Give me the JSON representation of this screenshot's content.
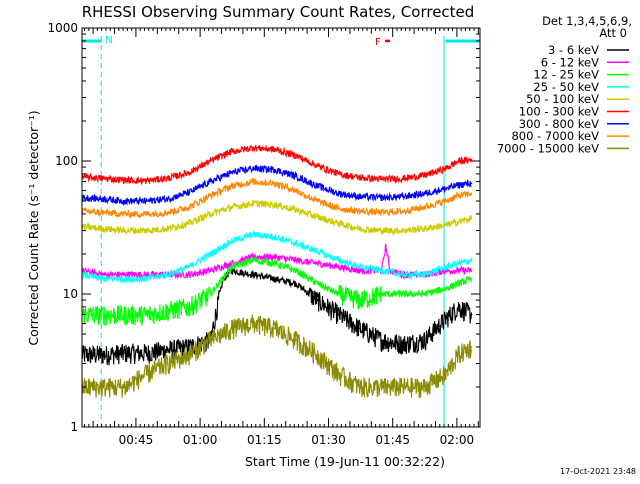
{
  "chart_data": {
    "type": "line",
    "title": "RHESSI Observing Summary Count Rates, Corrected",
    "xlabel": "Start Time (19-Jun-11 00:32:22)",
    "ylabel": "Corrected Count Rate (s⁻¹ detector⁻¹)",
    "footer": "17-Oct-2021 23:48",
    "y_scale": "log",
    "ylim": [
      1,
      1000
    ],
    "x_unit": "minutes after 00:32:22",
    "xlim": [
      0,
      93
    ],
    "x_tick_labels": [
      {
        "label": "00:45",
        "x": 12.6
      },
      {
        "label": "01:00",
        "x": 27.6
      },
      {
        "label": "01:15",
        "x": 42.6
      },
      {
        "label": "01:30",
        "x": 57.6
      },
      {
        "label": "01:45",
        "x": 72.6
      },
      {
        "label": "02:00",
        "x": 87.6
      }
    ],
    "y_tick_labels": [
      {
        "label": "1",
        "y": 1
      },
      {
        "label": "10",
        "y": 10
      },
      {
        "label": "100",
        "y": 100
      },
      {
        "label": "1000",
        "y": 1000
      }
    ],
    "legend": {
      "placement": "right",
      "header": [
        "Det 1,3,4,5,6,9,",
        "Att 0"
      ]
    },
    "annotations": {
      "night_label": "N",
      "flare_label": "F",
      "night_intervals": [
        [
          -5,
          4.5
        ],
        [
          85,
          95
        ]
      ],
      "saa_lines": [
        0,
        4.5,
        84.6,
        94
      ],
      "flare_interval": [
        70.8,
        72.0
      ],
      "flare_y": 800
    },
    "series": [
      {
        "name": "3 - 6 keV",
        "color": "#000000",
        "x": [
          0,
          5,
          10,
          15,
          20,
          25,
          30,
          33,
          35,
          40,
          45,
          50,
          55,
          60,
          65,
          70,
          75,
          80,
          85,
          88,
          91
        ],
        "values": [
          3.5,
          3.5,
          3.6,
          3.6,
          3.8,
          4.0,
          4.5,
          13,
          15,
          14,
          13,
          12,
          9,
          7,
          5.5,
          4.5,
          4.2,
          4.5,
          6.5,
          8,
          7
        ]
      },
      {
        "name": "6 - 12 keV",
        "color": "#ff00ff",
        "x": [
          0,
          5,
          10,
          15,
          20,
          25,
          30,
          35,
          40,
          45,
          50,
          55,
          60,
          65,
          70,
          71,
          72,
          75,
          80,
          85,
          88,
          91
        ],
        "values": [
          15,
          14,
          14,
          14,
          14,
          14,
          15,
          17,
          19,
          19,
          18,
          17,
          16,
          15,
          15,
          23,
          15,
          14,
          14,
          15,
          15,
          15
        ]
      },
      {
        "name": "12 - 25 keV",
        "color": "#00ff00",
        "x": [
          0,
          5,
          10,
          15,
          20,
          25,
          30,
          35,
          40,
          45,
          50,
          55,
          60,
          65,
          70,
          75,
          80,
          85,
          88,
          91
        ],
        "values": [
          7,
          7,
          7,
          7,
          7.5,
          8,
          10,
          16,
          18,
          17,
          15,
          12,
          10,
          9,
          10,
          10,
          10,
          11,
          12,
          13
        ]
      },
      {
        "name": "25 - 50 keV",
        "color": "#00ffff",
        "x": [
          0,
          5,
          10,
          15,
          20,
          25,
          30,
          35,
          40,
          45,
          50,
          55,
          60,
          65,
          70,
          75,
          80,
          85,
          88,
          91
        ],
        "values": [
          14,
          13,
          13,
          13,
          14,
          16,
          20,
          25,
          28,
          27,
          24,
          21,
          18,
          16,
          15,
          14,
          14,
          16,
          17,
          18
        ]
      },
      {
        "name": "50 - 100 keV",
        "color": "#cccc00",
        "x": [
          0,
          5,
          10,
          15,
          20,
          25,
          30,
          35,
          40,
          45,
          50,
          55,
          60,
          65,
          70,
          75,
          80,
          85,
          88,
          91
        ],
        "values": [
          32,
          31,
          30,
          30,
          31,
          34,
          40,
          45,
          48,
          47,
          43,
          38,
          34,
          31,
          30,
          30,
          31,
          33,
          35,
          37
        ]
      },
      {
        "name": "100 - 300 keV",
        "color": "#ff0000",
        "x": [
          0,
          5,
          10,
          15,
          20,
          25,
          30,
          35,
          40,
          45,
          50,
          55,
          60,
          65,
          70,
          75,
          80,
          85,
          88,
          91
        ],
        "values": [
          76,
          74,
          72,
          71,
          74,
          82,
          100,
          118,
          126,
          122,
          110,
          92,
          80,
          75,
          73,
          74,
          78,
          88,
          100,
          102
        ]
      },
      {
        "name": "300 - 800 keV",
        "color": "#0000ff",
        "x": [
          0,
          5,
          10,
          15,
          20,
          25,
          30,
          35,
          40,
          45,
          50,
          55,
          60,
          65,
          70,
          75,
          80,
          85,
          88,
          91
        ],
        "values": [
          53,
          52,
          50,
          50,
          52,
          58,
          70,
          82,
          88,
          86,
          77,
          65,
          57,
          54,
          53,
          54,
          57,
          62,
          66,
          68
        ]
      },
      {
        "name": "800 - 7000 keV",
        "color": "#ff8800",
        "x": [
          0,
          5,
          10,
          15,
          20,
          25,
          30,
          35,
          40,
          45,
          50,
          55,
          60,
          65,
          70,
          75,
          80,
          85,
          88,
          91
        ],
        "values": [
          42,
          41,
          40,
          40,
          41,
          45,
          55,
          65,
          70,
          68,
          60,
          50,
          44,
          42,
          41,
          42,
          45,
          50,
          55,
          57
        ]
      },
      {
        "name": "7000 - 15000 keV",
        "color": "#8b8b00",
        "x": [
          0,
          5,
          10,
          15,
          20,
          25,
          30,
          35,
          40,
          45,
          50,
          55,
          60,
          65,
          70,
          75,
          80,
          85,
          88,
          91
        ],
        "values": [
          2,
          2,
          2,
          2.5,
          3,
          3.5,
          4.5,
          5.5,
          6,
          5.5,
          4.5,
          3.5,
          2.5,
          2,
          2,
          2,
          2,
          2.5,
          3.5,
          4
        ]
      }
    ]
  }
}
